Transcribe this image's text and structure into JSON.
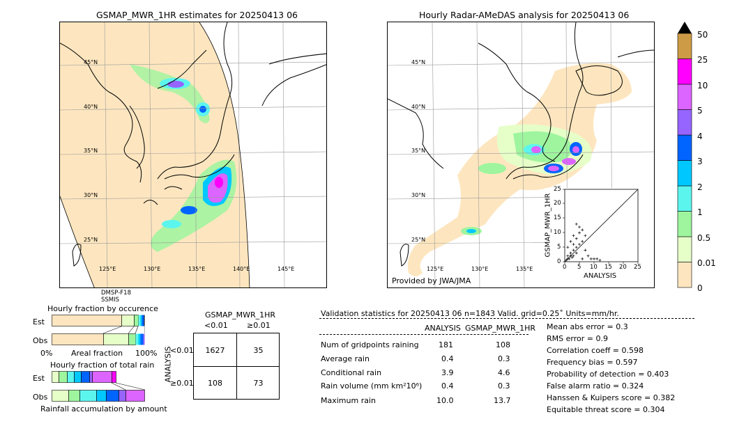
{
  "left_map": {
    "title": "GSMAP_MWR_1HR estimates for 20250413 06",
    "lat_labels": [
      "45°N",
      "40°N",
      "35°N",
      "30°N",
      "25°N"
    ],
    "lon_labels": [
      "125°E",
      "130°E",
      "135°E",
      "140°E",
      "145°E"
    ],
    "sensors": [
      "DMSP-F18",
      "SSMIS"
    ]
  },
  "right_map": {
    "title": "Hourly Radar-AMeDAS analysis for 20250413 06",
    "lat_labels": [
      "45°N",
      "40°N",
      "35°N",
      "30°N",
      "25°N"
    ],
    "lon_labels": [
      "125°E",
      "130°E",
      "135°E"
    ],
    "credit": "Provided by JWA/JMA"
  },
  "scatter_inset": {
    "xlabel": "ANALYSIS",
    "ylabel": "GSMAP_MWR_1HR",
    "ticks": [
      "0",
      "5",
      "10",
      "15",
      "20",
      "25"
    ]
  },
  "colorbar": {
    "labels": [
      "0",
      "0.01",
      "0.5",
      "1",
      "2",
      "3",
      "4",
      "5",
      "10",
      "25",
      "50"
    ],
    "colors": [
      "#fde6bf",
      "#e6ffc8",
      "#9ef59e",
      "#5cf5ee",
      "#00c8ff",
      "#0064ff",
      "#9664ff",
      "#dc64ff",
      "#ff00ff",
      "#cd9b46",
      "#000000"
    ]
  },
  "occurrence": {
    "title": "Hourly fraction by occurence",
    "rows": [
      "Est",
      "Obs"
    ],
    "xlabels": [
      "0%",
      "Areal fraction",
      "100%"
    ]
  },
  "total_rain": {
    "title": "Hourly fraction of total rain",
    "rows": [
      "Est",
      "Obs"
    ],
    "xlabel": "Rainfall accumulation by amount"
  },
  "contingency": {
    "title": "GSMAP_MWR_1HR",
    "col_headers": [
      "<0.01",
      "≥0.01"
    ],
    "row_label": "ANALYSIS",
    "row_headers": [
      "<0.01",
      "≥0.01"
    ],
    "cells": [
      [
        "1627",
        "35"
      ],
      [
        "108",
        "73"
      ]
    ]
  },
  "validation": {
    "header": "Validation statistics for 20250413 06  n=1843 Valid. grid=0.25˚ Units=mm/hr.",
    "col_analysis": "ANALYSIS",
    "col_gsmap": "GSMAP_MWR_1HR",
    "rows": [
      {
        "label": "Num of gridpoints raining",
        "analysis": "181",
        "gsmap": "108"
      },
      {
        "label": "Average rain",
        "analysis": "0.4",
        "gsmap": "0.3"
      },
      {
        "label": "Conditional rain",
        "analysis": "3.9",
        "gsmap": "4.6"
      },
      {
        "label": "Rain volume (mm km²10⁶)",
        "analysis": "0.4",
        "gsmap": "0.3"
      },
      {
        "label": "Maximum rain",
        "analysis": "10.0",
        "gsmap": "13.7"
      }
    ],
    "scores": [
      "Mean abs error =    0.3",
      "RMS error =    0.9",
      "Correlation coeff =  0.598",
      "Frequency bias =  0.597",
      "Probability of detection =  0.403",
      "False alarm ratio =  0.324",
      "Hanssen & Kuipers score =  0.382",
      "Equitable threat score =  0.304"
    ]
  }
}
